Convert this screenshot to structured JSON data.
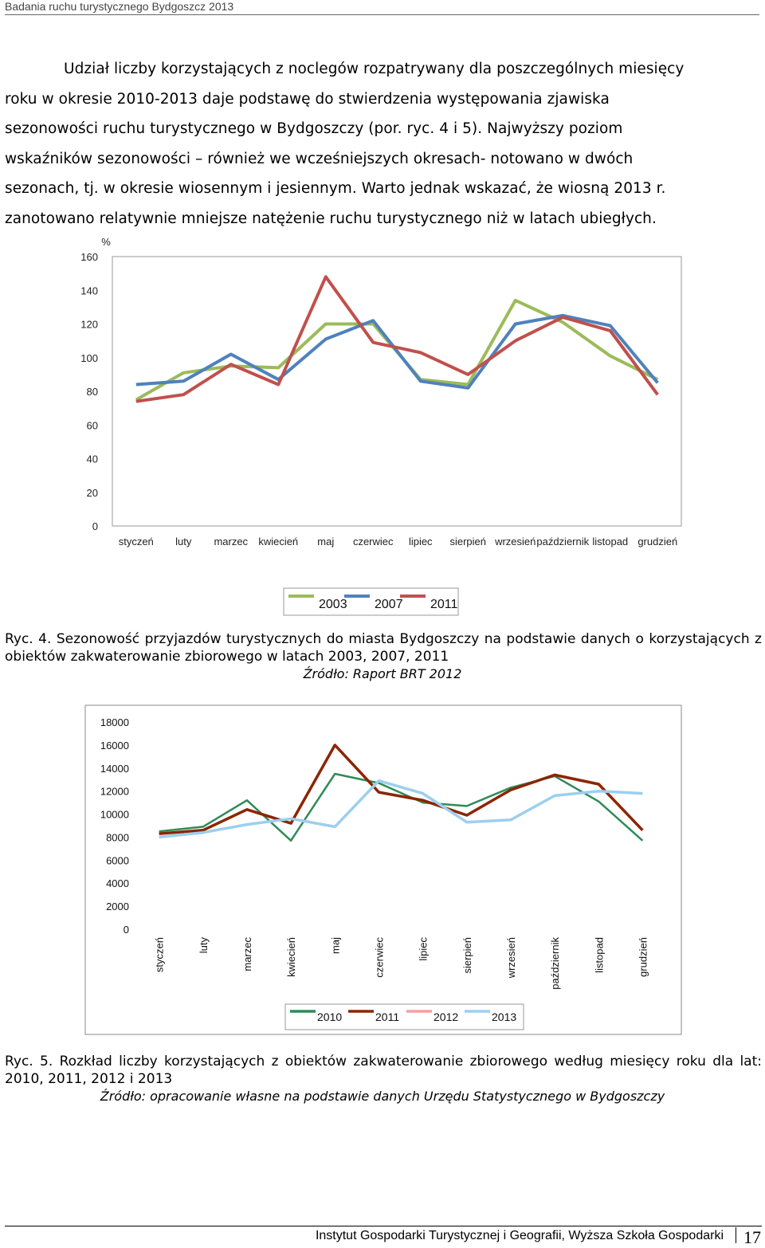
{
  "header": {
    "running_title": "Badania ruchu turystycznego Bydgoszcz 2013"
  },
  "intro_lines": [
    "Udział liczby korzystających z noclegów rozpatrywany dla poszczególnych miesięcy",
    "roku w okresie 2010-2013 daje podstawę do stwierdzenia występowania zjawiska",
    "sezonowości ruchu turystycznego w Bydgoszczy (por. ryc. 4 i 5). Najwyższy poziom",
    "wskaźników sezonowości – również we wcześniejszych okresach- notowano w dwóch",
    "sezonach, tj. w okresie wiosennym i jesiennym. Warto jednak wskazać, że wiosną 2013 r.",
    "zanotowano relatywnie mniejsze natężenie ruchu turystycznego niż w latach ubiegłych."
  ],
  "figure4": {
    "caption": "Ryc. 4. Sezonowość przyjazdów turystycznych do miasta Bydgoszczy na podstawie danych o korzystających z obiektów zakwaterowanie zbiorowego w latach 2003, 2007, 2011",
    "source": "Źródło: Raport BRT 2012"
  },
  "figure5": {
    "caption": "Ryc. 5. Rozkład liczby korzystających z obiektów zakwaterowanie zbiorowego według miesięcy roku dla lat: 2010, 2011, 2012 i 2013",
    "source": "Źródło: opracowanie własne na podstawie danych Urzędu Statystycznego w Bydgoszczy"
  },
  "footer": {
    "institution": "Instytut Gospodarki Turystycznej i Geografii, Wyższa Szkoła Gospodarki",
    "page_number": "17"
  },
  "chart_data": [
    {
      "type": "line",
      "title": "",
      "ylabel": "%",
      "xlabel": "",
      "ylim": [
        0,
        160
      ],
      "yticks": [
        "0",
        "20",
        "40",
        "60",
        "80",
        "100",
        "120",
        "140",
        "160"
      ],
      "grid": false,
      "legend": "bottom",
      "categories": [
        "styczeń",
        "luty",
        "marzec",
        "kwiecień",
        "maj",
        "czerwiec",
        "lipiec",
        "sierpień",
        "wrzesień",
        "październik",
        "listopad",
        "grudzień"
      ],
      "series": [
        {
          "name": "2003",
          "color": "#9bbb59",
          "values": [
            75,
            91,
            95,
            94,
            120,
            120,
            87,
            84,
            134,
            121,
            101,
            87
          ]
        },
        {
          "name": "2007",
          "color": "#4f81bd",
          "values": [
            84,
            86,
            102,
            87,
            111,
            122,
            86,
            82,
            120,
            125,
            119,
            85
          ]
        },
        {
          "name": "2011",
          "color": "#c0504d",
          "values": [
            74,
            78,
            96,
            84,
            148,
            109,
            103,
            90,
            110,
            124,
            116,
            78
          ]
        }
      ]
    },
    {
      "type": "line",
      "title": "",
      "xlabel": "",
      "ylabel": "",
      "ylim": [
        0,
        18000
      ],
      "yticks": [
        "0",
        "2000",
        "4000",
        "6000",
        "8000",
        "10000",
        "12000",
        "14000",
        "16000",
        "18000"
      ],
      "grid": false,
      "legend": "bottom",
      "categories": [
        "styczeń",
        "luty",
        "marzec",
        "kwiecień",
        "maj",
        "czerwiec",
        "lipiec",
        "sierpień",
        "wrzesień",
        "październik",
        "listopad",
        "grudzień"
      ],
      "series": [
        {
          "name": "2010",
          "color": "#2e8b57",
          "values": [
            8500,
            8900,
            11200,
            7700,
            13500,
            12700,
            11000,
            10700,
            12300,
            13300,
            11100,
            7700
          ]
        },
        {
          "name": "2011",
          "color": "#8b2500",
          "values": [
            8300,
            8600,
            10400,
            9200,
            16000,
            11900,
            11200,
            9900,
            12100,
            13400,
            12600,
            8600
          ]
        },
        {
          "name": "2012",
          "color": "#f4a0a0",
          "values": [
            8000,
            8400,
            9100,
            9600,
            8900,
            12900,
            11800,
            9300,
            9500,
            11600,
            12000,
            11800
          ]
        },
        {
          "name": "2013",
          "color": "#9ccfef",
          "values": [
            8000,
            8400,
            9100,
            9600,
            8900,
            12900,
            11800,
            9300,
            9500,
            11600,
            12000,
            11800
          ]
        }
      ]
    }
  ]
}
